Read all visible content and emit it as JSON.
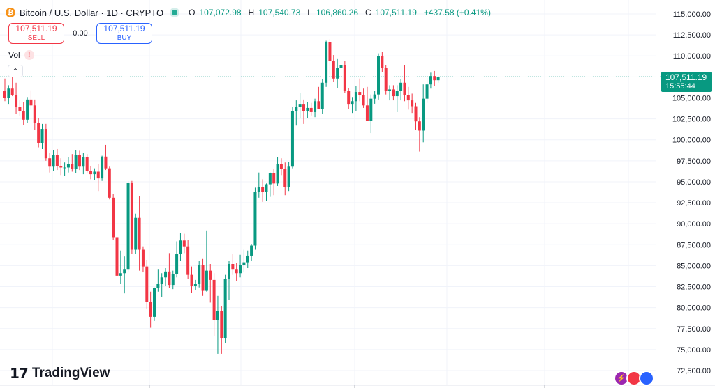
{
  "symbol": {
    "title": "Bitcoin / U.S. Dollar · 1D · CRYPTO",
    "icon": "bitcoin-icon",
    "icon_glyph": "₿"
  },
  "ohlc": {
    "o_label": "O",
    "o": "107,072.98",
    "h_label": "H",
    "h": "107,540.73",
    "l_label": "L",
    "l": "106,860.26",
    "c_label": "C",
    "c": "107,511.19",
    "change": "+437.58 (+0.41%)"
  },
  "trade": {
    "sell_price": "107,511.19",
    "sell_label": "SELL",
    "spread": "0.00",
    "buy_price": "107,511.19",
    "buy_label": "BUY"
  },
  "volume": {
    "label": "Vol",
    "warning_glyph": "!"
  },
  "collapse_glyph": "⌃",
  "last_price": {
    "price": "107,511.19",
    "countdown": "15:55:44"
  },
  "branding": {
    "mark": "17",
    "name": "TradingView"
  },
  "colors": {
    "up": "#089981",
    "down": "#f23645",
    "grid": "#f0f3fa",
    "last_price_line": "#089981"
  },
  "chart_data": {
    "type": "candlestick",
    "ylim": [
      72500,
      115000
    ],
    "y_ticks": [
      "115,000.00",
      "112,500.00",
      "110,000.00",
      "107,500.00",
      "105,000.00",
      "102,500.00",
      "100,000.00",
      "97,500.00",
      "95,000.00",
      "92,500.00",
      "90,000.00",
      "87,500.00",
      "85,000.00",
      "82,500.00",
      "80,000.00",
      "77,500.00",
      "75,000.00",
      "72,500.00"
    ],
    "y_tick_values": [
      115000,
      112500,
      110000,
      107500,
      105000,
      102500,
      100000,
      97500,
      95000,
      92500,
      90000,
      87500,
      85000,
      82500,
      80000,
      77500,
      75000,
      72500
    ],
    "last_price": 107511.19,
    "candles": [
      [
        105800,
        107300,
        104600,
        105000
      ],
      [
        105000,
        106500,
        104200,
        106100
      ],
      [
        106100,
        107500,
        105200,
        105300
      ],
      [
        105300,
        106800,
        103100,
        103900
      ],
      [
        103900,
        104700,
        102800,
        103400
      ],
      [
        103400,
        104500,
        101800,
        102400
      ],
      [
        102400,
        105100,
        102000,
        104800
      ],
      [
        104800,
        105900,
        103600,
        104100
      ],
      [
        104100,
        104800,
        101200,
        102000
      ],
      [
        102000,
        102600,
        99100,
        99600
      ],
      [
        99600,
        101900,
        98900,
        101300
      ],
      [
        101300,
        101900,
        97500,
        97800
      ],
      [
        97800,
        98400,
        96100,
        96800
      ],
      [
        96800,
        98800,
        96300,
        98200
      ],
      [
        98200,
        98900,
        96400,
        96900
      ],
      [
        96900,
        97800,
        95800,
        96700
      ],
      [
        96700,
        97300,
        95700,
        96700
      ],
      [
        96700,
        97900,
        96100,
        97100
      ],
      [
        97100,
        98300,
        96200,
        96500
      ],
      [
        96500,
        98800,
        96000,
        98200
      ],
      [
        98200,
        98700,
        96400,
        96800
      ],
      [
        96800,
        98400,
        95900,
        97900
      ],
      [
        97900,
        98300,
        96100,
        96300
      ],
      [
        96300,
        96900,
        95300,
        95900
      ],
      [
        95900,
        96600,
        95200,
        96200
      ],
      [
        96200,
        97100,
        93900,
        95400
      ],
      [
        95400,
        98100,
        95100,
        98000
      ],
      [
        98000,
        99400,
        96400,
        96600
      ],
      [
        96600,
        96800,
        92900,
        93100
      ],
      [
        93100,
        93500,
        88100,
        88400
      ],
      [
        88400,
        89100,
        83100,
        83800
      ],
      [
        83800,
        86800,
        82800,
        84100
      ],
      [
        84100,
        86100,
        81700,
        84600
      ],
      [
        84600,
        95100,
        84300,
        94900
      ],
      [
        94900,
        95100,
        86400,
        86900
      ],
      [
        86900,
        91200,
        86400,
        90700
      ],
      [
        90700,
        93300,
        84400,
        86900
      ],
      [
        86900,
        87300,
        84200,
        84900
      ],
      [
        84900,
        85700,
        79900,
        80700
      ],
      [
        80700,
        81900,
        77600,
        78900
      ],
      [
        78900,
        82400,
        78400,
        82300
      ],
      [
        82300,
        84600,
        81900,
        82800
      ],
      [
        82800,
        84100,
        81300,
        83600
      ],
      [
        83600,
        84700,
        82600,
        84300
      ],
      [
        84300,
        86500,
        82300,
        82700
      ],
      [
        82700,
        84400,
        82200,
        84000
      ],
      [
        84000,
        87900,
        83600,
        86400
      ],
      [
        86400,
        88900,
        85600,
        88000
      ],
      [
        88000,
        88800,
        86500,
        87300
      ],
      [
        87300,
        88100,
        83400,
        83900
      ],
      [
        83900,
        84900,
        81800,
        82600
      ],
      [
        82600,
        83300,
        82100,
        82800
      ],
      [
        82800,
        85600,
        82400,
        85100
      ],
      [
        85100,
        85800,
        81400,
        82000
      ],
      [
        82000,
        89200,
        81900,
        84400
      ],
      [
        84400,
        85200,
        80600,
        83300
      ],
      [
        83300,
        84100,
        76600,
        78500
      ],
      [
        78500,
        81400,
        74500,
        79600
      ],
      [
        79600,
        80200,
        74500,
        76400
      ],
      [
        76400,
        83900,
        75800,
        83400
      ],
      [
        83400,
        85600,
        80900,
        85200
      ],
      [
        85200,
        86400,
        83900,
        84600
      ],
      [
        84600,
        85300,
        83200,
        84100
      ],
      [
        84100,
        86300,
        83600,
        85100
      ],
      [
        85100,
        86900,
        84200,
        85400
      ],
      [
        85400,
        86800,
        84700,
        86200
      ],
      [
        86200,
        87600,
        85600,
        87400
      ],
      [
        87400,
        94300,
        86900,
        93800
      ],
      [
        93800,
        96100,
        93100,
        94400
      ],
      [
        94400,
        95300,
        92600,
        93800
      ],
      [
        93800,
        94800,
        92700,
        94700
      ],
      [
        94700,
        96100,
        93200,
        96000
      ],
      [
        96000,
        96500,
        93400,
        94800
      ],
      [
        94800,
        97900,
        94500,
        97100
      ],
      [
        97100,
        97800,
        95800,
        96500
      ],
      [
        96500,
        97300,
        93400,
        94400
      ],
      [
        94400,
        97400,
        93900,
        96800
      ],
      [
        96800,
        103900,
        96600,
        103400
      ],
      [
        103400,
        104700,
        101700,
        103900
      ],
      [
        103900,
        105600,
        102600,
        104200
      ],
      [
        104200,
        104800,
        101900,
        103400
      ],
      [
        103400,
        104500,
        102600,
        103800
      ],
      [
        103800,
        104400,
        102900,
        103300
      ],
      [
        103300,
        104900,
        102700,
        104600
      ],
      [
        104600,
        106300,
        103900,
        103700
      ],
      [
        103700,
        107200,
        103100,
        106800
      ],
      [
        106800,
        111800,
        106300,
        111600
      ],
      [
        111600,
        112000,
        107800,
        109400
      ],
      [
        109400,
        110100,
        106900,
        107300
      ],
      [
        107300,
        109700,
        106200,
        108600
      ],
      [
        108600,
        110400,
        107100,
        108900
      ],
      [
        108900,
        109400,
        105600,
        105800
      ],
      [
        105800,
        106200,
        103700,
        104200
      ],
      [
        104200,
        105100,
        103200,
        104600
      ],
      [
        104600,
        106400,
        103400,
        105700
      ],
      [
        105700,
        107300,
        104600,
        105300
      ],
      [
        105300,
        106100,
        103800,
        104100
      ],
      [
        104100,
        106300,
        102300,
        102300
      ],
      [
        102300,
        105400,
        100800,
        104900
      ],
      [
        104900,
        105800,
        104300,
        105400
      ],
      [
        105400,
        110300,
        104800,
        110000
      ],
      [
        110000,
        110500,
        108100,
        108600
      ],
      [
        108600,
        108900,
        105400,
        105800
      ],
      [
        105800,
        106500,
        104700,
        106000
      ],
      [
        106000,
        106500,
        104700,
        105200
      ],
      [
        105200,
        106500,
        103300,
        105800
      ],
      [
        105800,
        107200,
        104700,
        106800
      ],
      [
        106800,
        108900,
        104600,
        105300
      ],
      [
        105300,
        106300,
        103600,
        104700
      ],
      [
        104700,
        105500,
        103200,
        104000
      ],
      [
        104000,
        104400,
        101200,
        102200
      ],
      [
        102200,
        102700,
        98600,
        101100
      ],
      [
        101100,
        106600,
        99700,
        104900
      ],
      [
        104900,
        107400,
        104400,
        106600
      ],
      [
        106600,
        108000,
        106100,
        107600
      ],
      [
        107600,
        108200,
        106400,
        107100
      ],
      [
        107100,
        107600,
        106800,
        107500
      ]
    ]
  }
}
